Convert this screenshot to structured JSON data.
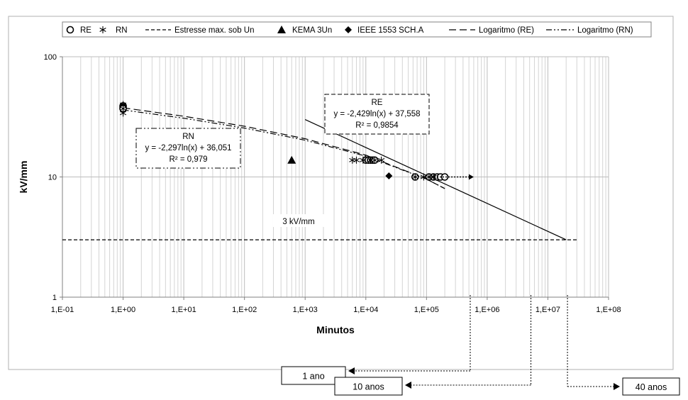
{
  "chart_data": {
    "type": "scatter",
    "title": "",
    "xlabel": "Minutos",
    "ylabel": "kV/mm",
    "x_scale": "log",
    "y_scale": "log",
    "xlim": [
      0.1,
      100000000
    ],
    "ylim": [
      1,
      100
    ],
    "x_ticks": [
      "1,E-01",
      "1,E+00",
      "1,E+01",
      "1,E+02",
      "1,E+03",
      "1,E+04",
      "1,E+05",
      "1,E+06",
      "1,E+07",
      "1,E+08"
    ],
    "y_ticks": [
      "1",
      "10",
      "100"
    ],
    "grid": "major and minor vertical, major horizontal",
    "legend": {
      "position": "top",
      "entries": [
        {
          "label": "RE",
          "marker": "circle"
        },
        {
          "label": "RN",
          "marker": "asterisk"
        },
        {
          "label": "Estresse  max. sob Un",
          "line": "dashed"
        },
        {
          "label": "KEMA 3Un",
          "marker": "triangle"
        },
        {
          "label": "IEEE 1553 SCH.A",
          "marker": "diamond"
        },
        {
          "label": "Logaritmo (RE)",
          "line": "long-dash"
        },
        {
          "label": "Logaritmo (RN)",
          "line": "dash-dot-dot"
        }
      ]
    },
    "series": [
      {
        "name": "RE",
        "marker": "circle",
        "points": [
          [
            1,
            39
          ],
          [
            1,
            38
          ],
          [
            1,
            37
          ],
          [
            10000,
            13.8
          ],
          [
            11000,
            13.8
          ],
          [
            12000,
            13.8
          ],
          [
            13000,
            13.8
          ],
          [
            14000,
            13.8
          ],
          [
            65000,
            10
          ],
          [
            110000,
            10
          ],
          [
            130000,
            10
          ],
          [
            150000,
            10
          ],
          [
            170000,
            10
          ],
          [
            200000,
            10
          ]
        ]
      },
      {
        "name": "RN",
        "marker": "asterisk",
        "points": [
          [
            1,
            40
          ],
          [
            1,
            37
          ],
          [
            1,
            34
          ],
          [
            6000,
            13.8
          ],
          [
            7000,
            13.8
          ],
          [
            9000,
            13.8
          ],
          [
            12000,
            13.8
          ],
          [
            14000,
            13.8
          ],
          [
            18000,
            13.8
          ],
          [
            65000,
            10
          ],
          [
            90000,
            10
          ],
          [
            110000,
            10
          ],
          [
            130000,
            10
          ]
        ]
      },
      {
        "name": "KEMA 3Un",
        "marker": "triangle",
        "points": [
          [
            600,
            13.8
          ]
        ]
      },
      {
        "name": "IEEE 1553 SCH.A",
        "marker": "diamond",
        "points": [
          [
            24000,
            10.2
          ]
        ]
      },
      {
        "name": "Estresse  max. sob Un",
        "line": "dashed",
        "points": [
          [
            0.1,
            3
          ],
          [
            30000000,
            3
          ]
        ]
      },
      {
        "name": "Logaritmo (RE)",
        "line": "long-dash",
        "points": [
          [
            1,
            37.6
          ],
          [
            10,
            32.0
          ],
          [
            100,
            26.4
          ],
          [
            1000,
            20.8
          ],
          [
            10000,
            15.2
          ],
          [
            100000,
            9.6
          ],
          [
            200000,
            8.0
          ]
        ]
      },
      {
        "name": "Logaritmo (RN)",
        "line": "dash-dot-dot",
        "points": [
          [
            1,
            36.1
          ],
          [
            10,
            30.8
          ],
          [
            100,
            25.5
          ],
          [
            1000,
            20.2
          ],
          [
            10000,
            14.9
          ],
          [
            100000,
            9.6
          ],
          [
            200000,
            8.0
          ]
        ]
      },
      {
        "name": "Extrapolation",
        "line": "solid",
        "points": [
          [
            1000,
            30
          ],
          [
            20000000,
            3
          ]
        ]
      }
    ],
    "arrow": {
      "from": [
        120000,
        10
      ],
      "to": [
        600000,
        10
      ]
    },
    "annotations": {
      "re_box": {
        "lines": [
          "RE",
          "y = -2,429ln(x) + 37,558",
          "R² = 0,9854"
        ]
      },
      "rn_box": {
        "lines": [
          "RN",
          "y = -2,297ln(x) + 36,051",
          "R² = 0,979"
        ]
      },
      "threshold_label": "3 kV/mm",
      "callouts": [
        {
          "label": "1 ano",
          "x": 525600
        },
        {
          "label": "10 anos",
          "x": 5256000
        },
        {
          "label": "40 anos",
          "x": 21024000
        }
      ]
    }
  }
}
